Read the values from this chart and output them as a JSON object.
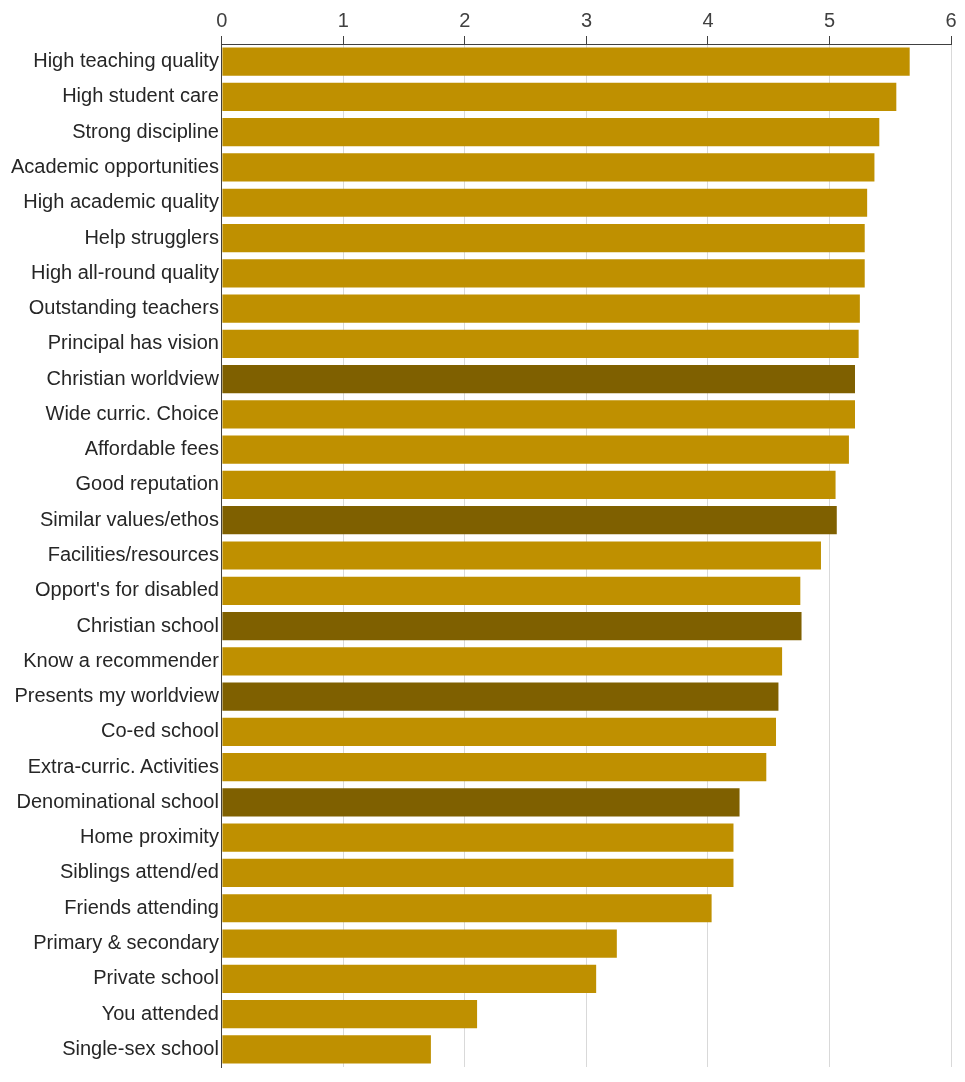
{
  "chart_data": {
    "type": "bar",
    "orientation": "horizontal",
    "categories": [
      "High teaching quality",
      "High student care",
      "Strong discipline",
      "Academic opportunities",
      "High academic quality",
      "Help strugglers",
      "High all-round quality",
      "Outstanding teachers",
      "Principal has vision",
      "Christian worldview",
      "Wide curric. Choice",
      "Affordable fees",
      "Good reputation",
      "Similar values/ethos",
      "Facilities/resources",
      "Opport's for disabled",
      "Christian school",
      "Know a recommender",
      "Presents my worldview",
      "Co-ed school",
      "Extra-curric. Activities",
      "Denominational school",
      "Home proximity",
      "Siblings attend/ed",
      "Friends attending",
      "Primary & secondary",
      "Private school",
      "You attended",
      "Single-sex school"
    ],
    "values": [
      5.66,
      5.55,
      5.41,
      5.37,
      5.31,
      5.29,
      5.29,
      5.25,
      5.24,
      5.21,
      5.21,
      5.16,
      5.05,
      5.06,
      4.93,
      4.76,
      4.77,
      4.61,
      4.58,
      4.56,
      4.48,
      4.26,
      4.21,
      4.21,
      4.03,
      3.25,
      3.08,
      2.1,
      1.72
    ],
    "colors": [
      "#bf9000",
      "#bf9000",
      "#bf9000",
      "#bf9000",
      "#bf9000",
      "#bf9000",
      "#bf9000",
      "#bf9000",
      "#bf9000",
      "#7f6000",
      "#bf9000",
      "#bf9000",
      "#bf9000",
      "#7f6000",
      "#bf9000",
      "#bf9000",
      "#7f6000",
      "#bf9000",
      "#7f6000",
      "#bf9000",
      "#bf9000",
      "#7f6000",
      "#bf9000",
      "#bf9000",
      "#bf9000",
      "#bf9000",
      "#bf9000",
      "#bf9000",
      "#bf9000"
    ],
    "xlim": [
      0,
      6
    ],
    "xticks": [
      0,
      1,
      2,
      3,
      4,
      5,
      6
    ],
    "grid": "x"
  }
}
